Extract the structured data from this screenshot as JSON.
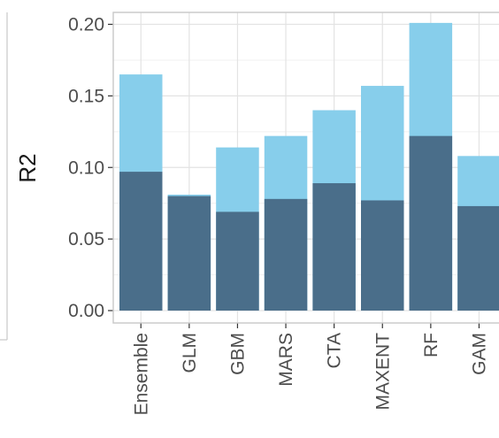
{
  "chart_data": {
    "type": "bar",
    "stacked": false,
    "overlaid": true,
    "title": "",
    "xlabel": "",
    "ylabel": "R2",
    "ylim": [
      0,
      0.21
    ],
    "yticks": [
      0.0,
      0.05,
      0.1,
      0.15,
      0.2
    ],
    "ytick_labels": [
      "0.00",
      "0.05",
      "0.10",
      "0.15",
      "0.20"
    ],
    "grid": true,
    "legend": "none",
    "categories": [
      "Ensemble",
      "GLM",
      "GBM",
      "MARS",
      "CTA",
      "MAXENT",
      "RF",
      "GAM"
    ],
    "series": [
      {
        "values": [
          0.165,
          0.081,
          0.114,
          0.122,
          0.14,
          0.157,
          0.201,
          0.108
        ],
        "color": "#87ceeb"
      },
      {
        "values": [
          0.097,
          0.08,
          0.069,
          0.078,
          0.089,
          0.077,
          0.122,
          0.073
        ],
        "color": "#4a6e8a"
      }
    ]
  },
  "colors": {
    "panel_border": "#c8c8c8",
    "grid_major": "#e3e3e3",
    "grid_minor": "#f1f1f1",
    "tick": "#333333"
  }
}
